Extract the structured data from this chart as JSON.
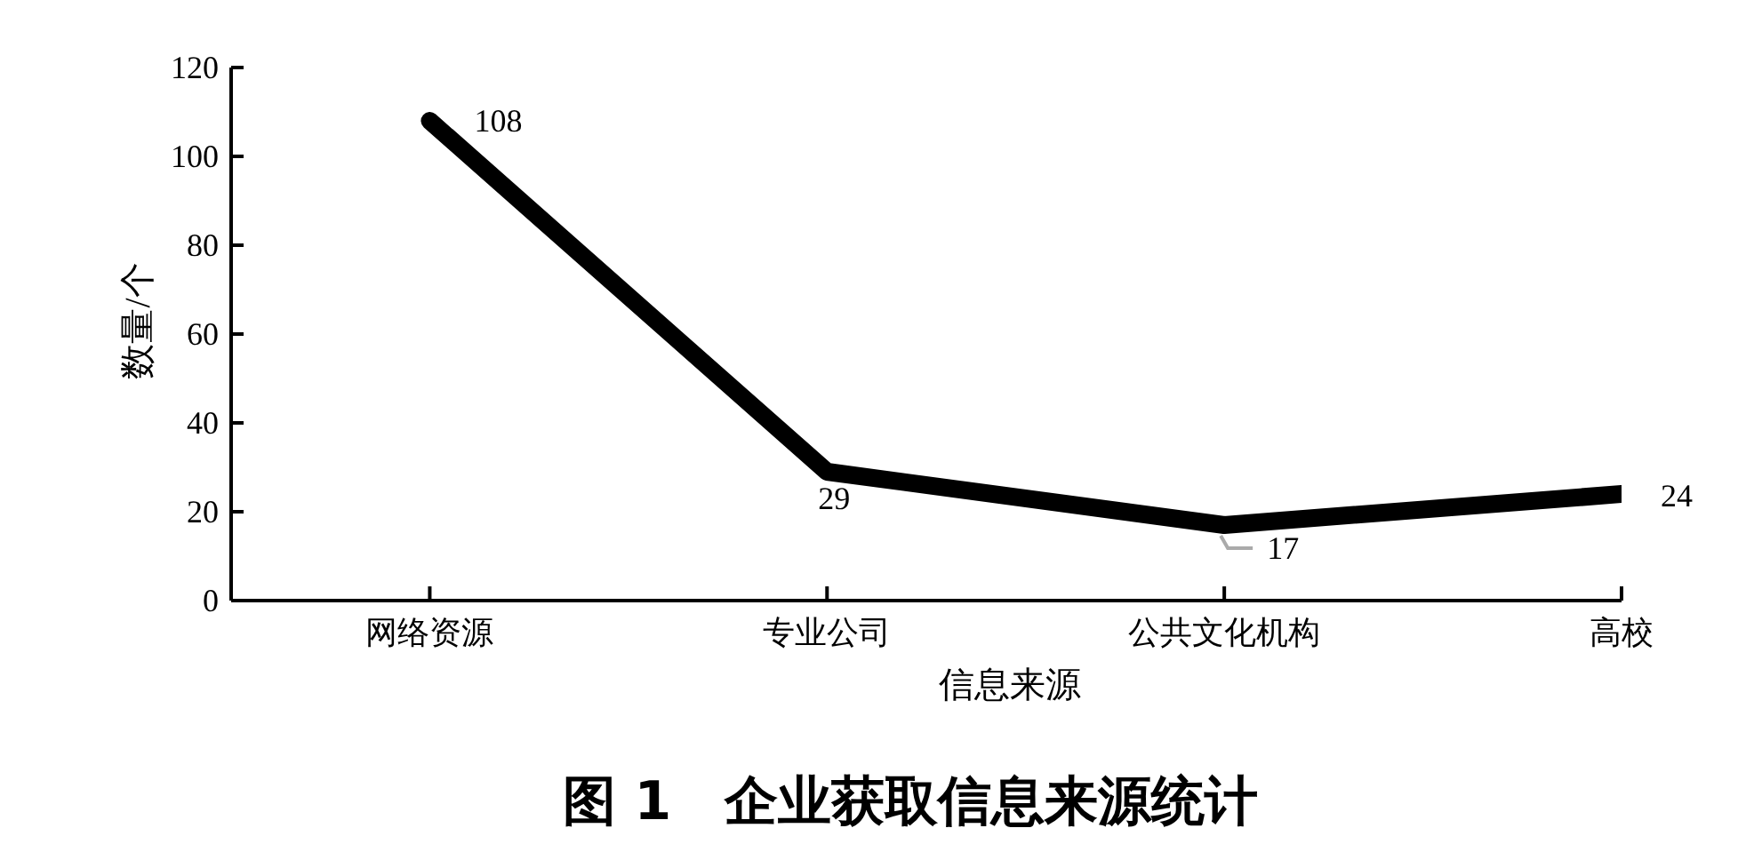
{
  "chart_data": {
    "type": "line",
    "title": "图 1　企业获取信息来源统计",
    "xlabel": "信息来源",
    "ylabel": "数量/个",
    "categories": [
      "网络资源",
      "专业公司",
      "公共文化机构",
      "高校"
    ],
    "values": [
      108,
      29,
      17,
      24
    ],
    "color": "#000000",
    "ylim": [
      0,
      120
    ],
    "yticks": [
      0,
      20,
      40,
      60,
      80,
      100,
      120
    ],
    "data_labels": true,
    "line_style": "solid"
  }
}
